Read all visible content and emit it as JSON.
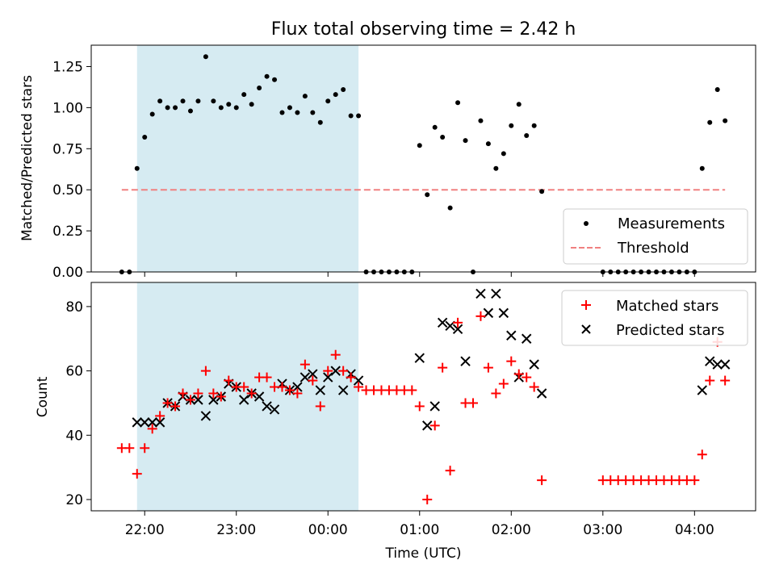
{
  "chart_data": [
    {
      "type": "scatter",
      "title": "Flux total observing time = 2.42 h",
      "ylabel": "Matched/Predicted stars",
      "xlabel": "",
      "x_unit": "hours UTC (wrapping past midnight)",
      "xlim": [
        "21:25",
        "04:40"
      ],
      "ylim": [
        0,
        1.38
      ],
      "y_ticks": [
        "0.00",
        "0.25",
        "0.50",
        "0.75",
        "1.00",
        "1.25"
      ],
      "highlight_span": {
        "from": "21:55",
        "to": "00:20",
        "color": "#add8e6"
      },
      "legend": {
        "position": "lower-right",
        "entries": [
          "Measurements",
          "Threshold"
        ]
      },
      "threshold": {
        "name": "Threshold",
        "value": 0.5,
        "from": "21:45",
        "to": "04:20",
        "color": "#f08080",
        "style": "dashed"
      },
      "series": [
        {
          "name": "Measurements",
          "color": "#000000",
          "marker": "dot",
          "points": [
            [
              "21:45",
              0.0
            ],
            [
              "21:50",
              0.0
            ],
            [
              "21:55",
              0.63
            ],
            [
              "22:00",
              0.82
            ],
            [
              "22:05",
              0.96
            ],
            [
              "22:10",
              1.04
            ],
            [
              "22:15",
              1.0
            ],
            [
              "22:20",
              1.0
            ],
            [
              "22:25",
              1.04
            ],
            [
              "22:30",
              0.98
            ],
            [
              "22:35",
              1.04
            ],
            [
              "22:40",
              1.31
            ],
            [
              "22:45",
              1.04
            ],
            [
              "22:50",
              1.0
            ],
            [
              "22:55",
              1.02
            ],
            [
              "23:00",
              1.0
            ],
            [
              "23:05",
              1.08
            ],
            [
              "23:10",
              1.02
            ],
            [
              "23:15",
              1.12
            ],
            [
              "23:20",
              1.19
            ],
            [
              "23:25",
              1.17
            ],
            [
              "23:30",
              0.97
            ],
            [
              "23:35",
              1.0
            ],
            [
              "23:40",
              0.97
            ],
            [
              "23:45",
              1.07
            ],
            [
              "23:50",
              0.97
            ],
            [
              "23:55",
              0.91
            ],
            [
              "00:00",
              1.04
            ],
            [
              "00:05",
              1.08
            ],
            [
              "00:10",
              1.11
            ],
            [
              "00:15",
              0.95
            ],
            [
              "00:20",
              0.95
            ],
            [
              "00:25",
              0.0
            ],
            [
              "00:30",
              0.0
            ],
            [
              "00:35",
              0.0
            ],
            [
              "00:40",
              0.0
            ],
            [
              "00:45",
              0.0
            ],
            [
              "00:50",
              0.0
            ],
            [
              "00:55",
              0.0
            ],
            [
              "01:00",
              0.77
            ],
            [
              "01:05",
              0.47
            ],
            [
              "01:10",
              0.88
            ],
            [
              "01:15",
              0.82
            ],
            [
              "01:20",
              0.39
            ],
            [
              "01:25",
              1.03
            ],
            [
              "01:30",
              0.8
            ],
            [
              "01:35",
              0.0
            ],
            [
              "01:40",
              0.92
            ],
            [
              "01:45",
              0.78
            ],
            [
              "01:50",
              0.63
            ],
            [
              "01:55",
              0.72
            ],
            [
              "02:00",
              0.89
            ],
            [
              "02:05",
              1.02
            ],
            [
              "02:10",
              0.83
            ],
            [
              "02:15",
              0.89
            ],
            [
              "02:20",
              0.49
            ],
            [
              "03:00",
              0.0
            ],
            [
              "03:05",
              0.0
            ],
            [
              "03:10",
              0.0
            ],
            [
              "03:15",
              0.0
            ],
            [
              "03:20",
              0.0
            ],
            [
              "03:25",
              0.0
            ],
            [
              "03:30",
              0.0
            ],
            [
              "03:35",
              0.0
            ],
            [
              "03:40",
              0.0
            ],
            [
              "03:45",
              0.0
            ],
            [
              "03:50",
              0.0
            ],
            [
              "03:55",
              0.0
            ],
            [
              "04:00",
              0.0
            ],
            [
              "04:05",
              0.63
            ],
            [
              "04:10",
              0.91
            ],
            [
              "04:15",
              1.11
            ],
            [
              "04:20",
              0.92
            ]
          ]
        }
      ]
    },
    {
      "type": "scatter",
      "title": "",
      "xlabel": "Time (UTC)",
      "ylabel": "Count",
      "xlim": [
        "21:25",
        "04:40"
      ],
      "ylim": [
        16.5,
        87.5
      ],
      "x_ticks": [
        "22:00",
        "23:00",
        "00:00",
        "01:00",
        "02:00",
        "03:00",
        "04:00"
      ],
      "y_ticks": [
        "20",
        "40",
        "60",
        "80"
      ],
      "highlight_span": {
        "from": "21:55",
        "to": "00:20",
        "color": "#add8e6"
      },
      "legend": {
        "position": "top-right",
        "entries": [
          "Matched stars",
          "Predicted stars"
        ]
      },
      "series": [
        {
          "name": "Matched stars",
          "color": "#ff0000",
          "marker": "plus",
          "points": [
            [
              "21:45",
              36
            ],
            [
              "21:50",
              36
            ],
            [
              "21:55",
              28
            ],
            [
              "22:00",
              36
            ],
            [
              "22:05",
              42
            ],
            [
              "22:10",
              46
            ],
            [
              "22:15",
              50
            ],
            [
              "22:20",
              49
            ],
            [
              "22:25",
              53
            ],
            [
              "22:30",
              51
            ],
            [
              "22:35",
              53
            ],
            [
              "22:40",
              60
            ],
            [
              "22:45",
              53
            ],
            [
              "22:50",
              52
            ],
            [
              "22:55",
              57
            ],
            [
              "23:00",
              55
            ],
            [
              "23:05",
              55
            ],
            [
              "23:10",
              53
            ],
            [
              "23:15",
              58
            ],
            [
              "23:20",
              58
            ],
            [
              "23:25",
              55
            ],
            [
              "23:30",
              55
            ],
            [
              "23:35",
              54
            ],
            [
              "23:40",
              53
            ],
            [
              "23:45",
              62
            ],
            [
              "23:50",
              57
            ],
            [
              "23:55",
              49
            ],
            [
              "00:00",
              60
            ],
            [
              "00:05",
              65
            ],
            [
              "00:10",
              60
            ],
            [
              "00:15",
              58
            ],
            [
              "00:20",
              55
            ],
            [
              "00:25",
              54
            ],
            [
              "00:30",
              54
            ],
            [
              "00:35",
              54
            ],
            [
              "00:40",
              54
            ],
            [
              "00:45",
              54
            ],
            [
              "00:50",
              54
            ],
            [
              "00:55",
              54
            ],
            [
              "01:00",
              49
            ],
            [
              "01:05",
              20
            ],
            [
              "01:10",
              43
            ],
            [
              "01:15",
              61
            ],
            [
              "01:20",
              29
            ],
            [
              "01:25",
              75
            ],
            [
              "01:30",
              50
            ],
            [
              "01:35",
              50
            ],
            [
              "01:40",
              77
            ],
            [
              "01:45",
              61
            ],
            [
              "01:50",
              53
            ],
            [
              "01:55",
              56
            ],
            [
              "02:00",
              63
            ],
            [
              "02:05",
              59
            ],
            [
              "02:10",
              58
            ],
            [
              "02:15",
              55
            ],
            [
              "02:20",
              26
            ],
            [
              "03:00",
              26
            ],
            [
              "03:05",
              26
            ],
            [
              "03:10",
              26
            ],
            [
              "03:15",
              26
            ],
            [
              "03:20",
              26
            ],
            [
              "03:25",
              26
            ],
            [
              "03:30",
              26
            ],
            [
              "03:35",
              26
            ],
            [
              "03:40",
              26
            ],
            [
              "03:45",
              26
            ],
            [
              "03:50",
              26
            ],
            [
              "03:55",
              26
            ],
            [
              "04:00",
              26
            ],
            [
              "04:05",
              34
            ],
            [
              "04:10",
              57
            ],
            [
              "04:15",
              69
            ],
            [
              "04:20",
              57
            ]
          ]
        },
        {
          "name": "Predicted stars",
          "color": "#000000",
          "marker": "x",
          "points": [
            [
              "21:55",
              44
            ],
            [
              "22:00",
              44
            ],
            [
              "22:05",
              44
            ],
            [
              "22:10",
              44
            ],
            [
              "22:15",
              50
            ],
            [
              "22:20",
              49
            ],
            [
              "22:25",
              52
            ],
            [
              "22:30",
              51
            ],
            [
              "22:35",
              51
            ],
            [
              "22:40",
              46
            ],
            [
              "22:45",
              51
            ],
            [
              "22:50",
              52
            ],
            [
              "22:55",
              56
            ],
            [
              "23:00",
              55
            ],
            [
              "23:05",
              51
            ],
            [
              "23:10",
              53
            ],
            [
              "23:15",
              52
            ],
            [
              "23:20",
              49
            ],
            [
              "23:25",
              48
            ],
            [
              "23:30",
              56
            ],
            [
              "23:35",
              54
            ],
            [
              "23:40",
              55
            ],
            [
              "23:45",
              58
            ],
            [
              "23:50",
              59
            ],
            [
              "23:55",
              54
            ],
            [
              "00:00",
              58
            ],
            [
              "00:05",
              60
            ],
            [
              "00:10",
              54
            ],
            [
              "00:15",
              59
            ],
            [
              "00:20",
              57
            ],
            [
              "01:00",
              64
            ],
            [
              "01:05",
              43
            ],
            [
              "01:10",
              49
            ],
            [
              "01:15",
              75
            ],
            [
              "01:20",
              74
            ],
            [
              "01:25",
              73
            ],
            [
              "01:30",
              63
            ],
            [
              "01:40",
              84
            ],
            [
              "01:45",
              78
            ],
            [
              "01:50",
              84
            ],
            [
              "01:55",
              78
            ],
            [
              "02:00",
              71
            ],
            [
              "02:05",
              58
            ],
            [
              "02:10",
              70
            ],
            [
              "02:15",
              62
            ],
            [
              "02:20",
              53
            ],
            [
              "04:05",
              54
            ],
            [
              "04:10",
              63
            ],
            [
              "04:15",
              62
            ],
            [
              "04:20",
              62
            ]
          ]
        }
      ]
    }
  ]
}
